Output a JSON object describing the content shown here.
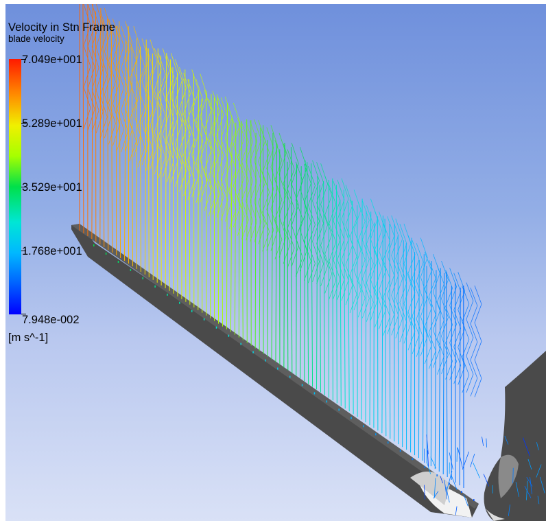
{
  "legend": {
    "title": "Velocity in Stn Frame",
    "subtitle": "blade velocity",
    "ticks": [
      "7.049e+001",
      "5.289e+001",
      "3.529e+001",
      "1.768e+001",
      "7.948e-002"
    ],
    "units": "[m s^-1]",
    "color_stops": [
      "#ff1a00",
      "#ff8c00",
      "#f0f000",
      "#a6ff00",
      "#00e04a",
      "#00e6d6",
      "#00b8ff",
      "#0060ff",
      "#0000ff"
    ]
  },
  "scene": {
    "background_top": "#6f90dc",
    "background_bottom": "#d9e1f6",
    "blade_color": "#4a4a4a",
    "content": "velocity streamlines over blade"
  }
}
